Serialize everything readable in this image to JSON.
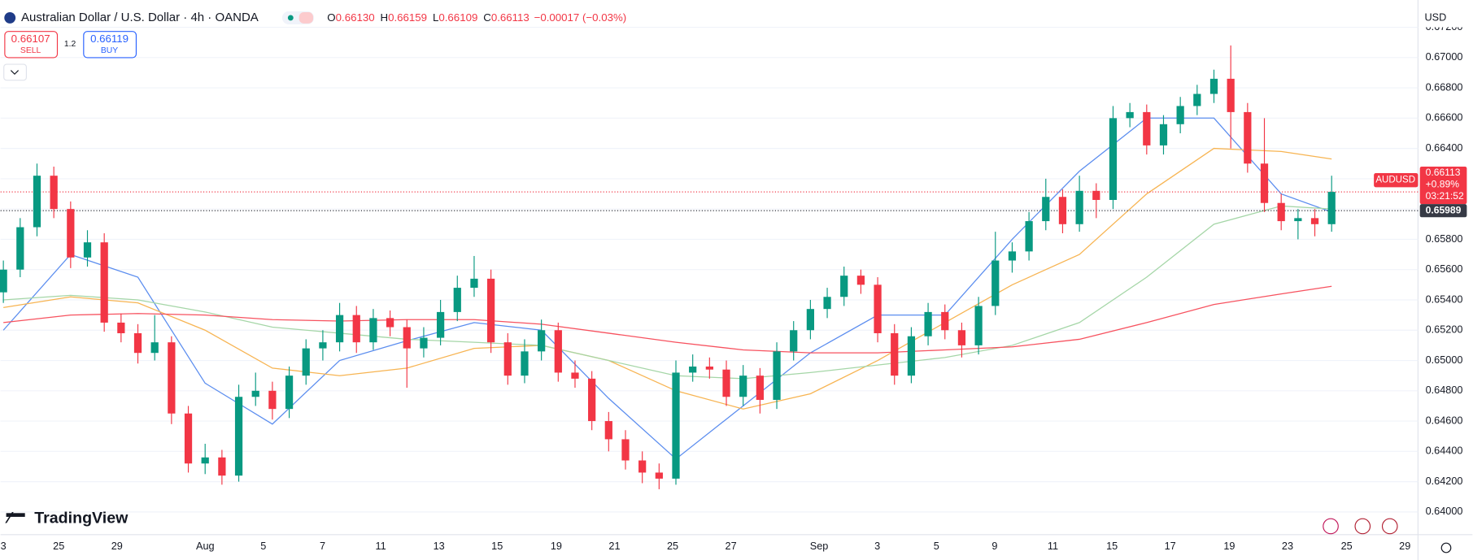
{
  "header": {
    "title": "Australian Dollar / U.S. Dollar · 4h · OANDA",
    "ohlc": [
      {
        "label": "O",
        "value": "0.66130"
      },
      {
        "label": "H",
        "value": "0.66159"
      },
      {
        "label": "L",
        "value": "0.66109"
      },
      {
        "label": "C",
        "value": "0.66113"
      }
    ],
    "change": "−0.00017 (−0.03%)"
  },
  "trade": {
    "sell_price": "0.66107",
    "sell_label": "SELL",
    "spread": "1.2",
    "buy_price": "0.66119",
    "buy_label": "BUY"
  },
  "currency": "USD",
  "logo": "TradingView",
  "chart_data": {
    "type": "candlestick",
    "up_color": "#089981",
    "down_color": "#f23645",
    "grid": true,
    "ylim": [
      0.6385,
      0.6738
    ],
    "yticks": [
      {
        "value": 0.64,
        "label": "0.64000"
      },
      {
        "value": 0.642,
        "label": "0.64200"
      },
      {
        "value": 0.644,
        "label": "0.64400"
      },
      {
        "value": 0.646,
        "label": "0.64600"
      },
      {
        "value": 0.648,
        "label": "0.64800"
      },
      {
        "value": 0.65,
        "label": "0.65000"
      },
      {
        "value": 0.652,
        "label": "0.65200"
      },
      {
        "value": 0.654,
        "label": "0.65400"
      },
      {
        "value": 0.656,
        "label": "0.65600"
      },
      {
        "value": 0.658,
        "label": "0.65800"
      },
      {
        "value": 0.66,
        "label": "0.66000"
      },
      {
        "value": 0.662,
        "label": "0.66200"
      },
      {
        "value": 0.664,
        "label": "0.66400"
      },
      {
        "value": 0.666,
        "label": "0.66600"
      },
      {
        "value": 0.668,
        "label": "0.66800"
      },
      {
        "value": 0.67,
        "label": "0.67000"
      },
      {
        "value": 0.672,
        "label": "0.67200"
      }
    ],
    "x_labels": [
      "3",
      "25",
      "29",
      "Aug",
      "5",
      "7",
      "11",
      "13",
      "15",
      "19",
      "21",
      "25",
      "27",
      "Sep",
      "3",
      "5",
      "9",
      "11",
      "15",
      "17",
      "19",
      "23",
      "25",
      "29"
    ],
    "candles": [
      [
        0.6545,
        0.6566,
        0.6538,
        0.656
      ],
      [
        0.656,
        0.6594,
        0.6555,
        0.6588
      ],
      [
        0.6588,
        0.663,
        0.6582,
        0.6622
      ],
      [
        0.6622,
        0.6628,
        0.6594,
        0.66
      ],
      [
        0.66,
        0.6605,
        0.6561,
        0.6568
      ],
      [
        0.6568,
        0.6586,
        0.6562,
        0.6578
      ],
      [
        0.6578,
        0.6584,
        0.6519,
        0.6525
      ],
      [
        0.6525,
        0.6531,
        0.6512,
        0.6518
      ],
      [
        0.6518,
        0.6524,
        0.6498,
        0.6505
      ],
      [
        0.6505,
        0.653,
        0.65,
        0.6512
      ],
      [
        0.6512,
        0.6516,
        0.6458,
        0.6465
      ],
      [
        0.6465,
        0.647,
        0.6426,
        0.6432
      ],
      [
        0.6432,
        0.6445,
        0.6425,
        0.6436
      ],
      [
        0.6436,
        0.6441,
        0.6418,
        0.6424
      ],
      [
        0.6424,
        0.6484,
        0.642,
        0.6476
      ],
      [
        0.6476,
        0.6492,
        0.647,
        0.648
      ],
      [
        0.648,
        0.6486,
        0.6461,
        0.6468
      ],
      [
        0.6468,
        0.6496,
        0.6462,
        0.649
      ],
      [
        0.649,
        0.6514,
        0.6484,
        0.6508
      ],
      [
        0.6508,
        0.652,
        0.65,
        0.6512
      ],
      [
        0.6512,
        0.6538,
        0.6506,
        0.653
      ],
      [
        0.653,
        0.6536,
        0.6505,
        0.6512
      ],
      [
        0.6512,
        0.6534,
        0.6507,
        0.6528
      ],
      [
        0.6528,
        0.6533,
        0.6516,
        0.6522
      ],
      [
        0.6522,
        0.6527,
        0.6482,
        0.6508
      ],
      [
        0.6508,
        0.6522,
        0.6502,
        0.6515
      ],
      [
        0.6515,
        0.654,
        0.651,
        0.6532
      ],
      [
        0.6532,
        0.6556,
        0.6526,
        0.6548
      ],
      [
        0.6548,
        0.6569,
        0.6542,
        0.6554
      ],
      [
        0.6554,
        0.656,
        0.6505,
        0.6512
      ],
      [
        0.6512,
        0.6518,
        0.6484,
        0.649
      ],
      [
        0.649,
        0.6514,
        0.6485,
        0.6506
      ],
      [
        0.6506,
        0.6527,
        0.65,
        0.652
      ],
      [
        0.652,
        0.6525,
        0.6486,
        0.6492
      ],
      [
        0.6492,
        0.65,
        0.6482,
        0.6488
      ],
      [
        0.6488,
        0.6493,
        0.6454,
        0.646
      ],
      [
        0.646,
        0.6466,
        0.644,
        0.6448
      ],
      [
        0.6448,
        0.6454,
        0.6428,
        0.6434
      ],
      [
        0.6434,
        0.644,
        0.6419,
        0.6426
      ],
      [
        0.6426,
        0.6432,
        0.6415,
        0.6422
      ],
      [
        0.6422,
        0.65,
        0.6418,
        0.6492
      ],
      [
        0.6492,
        0.6504,
        0.6486,
        0.6496
      ],
      [
        0.6496,
        0.6502,
        0.6488,
        0.6494
      ],
      [
        0.6494,
        0.65,
        0.647,
        0.6476
      ],
      [
        0.6476,
        0.6497,
        0.647,
        0.649
      ],
      [
        0.649,
        0.6495,
        0.6465,
        0.6474
      ],
      [
        0.6474,
        0.6512,
        0.6468,
        0.6506
      ],
      [
        0.6506,
        0.6526,
        0.65,
        0.652
      ],
      [
        0.652,
        0.654,
        0.6514,
        0.6534
      ],
      [
        0.6534,
        0.6548,
        0.6528,
        0.6542
      ],
      [
        0.6542,
        0.6562,
        0.6536,
        0.6556
      ],
      [
        0.6556,
        0.656,
        0.6544,
        0.655
      ],
      [
        0.655,
        0.6555,
        0.6512,
        0.6518
      ],
      [
        0.6518,
        0.6524,
        0.6484,
        0.649
      ],
      [
        0.649,
        0.6522,
        0.6485,
        0.6516
      ],
      [
        0.6516,
        0.6538,
        0.651,
        0.6532
      ],
      [
        0.6532,
        0.6537,
        0.6514,
        0.652
      ],
      [
        0.652,
        0.6525,
        0.6502,
        0.651
      ],
      [
        0.651,
        0.6542,
        0.6504,
        0.6536
      ],
      [
        0.6536,
        0.6585,
        0.653,
        0.6566
      ],
      [
        0.6566,
        0.6578,
        0.6558,
        0.6572
      ],
      [
        0.6572,
        0.6598,
        0.6566,
        0.6592
      ],
      [
        0.6592,
        0.662,
        0.6586,
        0.6608
      ],
      [
        0.6608,
        0.6613,
        0.6584,
        0.659
      ],
      [
        0.659,
        0.6622,
        0.6585,
        0.6612
      ],
      [
        0.6612,
        0.6617,
        0.6594,
        0.6606
      ],
      [
        0.6606,
        0.6668,
        0.66,
        0.666
      ],
      [
        0.666,
        0.667,
        0.6654,
        0.6664
      ],
      [
        0.6664,
        0.6669,
        0.6636,
        0.6642
      ],
      [
        0.6642,
        0.6662,
        0.6636,
        0.6656
      ],
      [
        0.6656,
        0.6674,
        0.665,
        0.6668
      ],
      [
        0.6668,
        0.6682,
        0.6662,
        0.6676
      ],
      [
        0.6676,
        0.6692,
        0.667,
        0.6686
      ],
      [
        0.6686,
        0.6708,
        0.664,
        0.6664
      ],
      [
        0.6664,
        0.667,
        0.6624,
        0.663
      ],
      [
        0.663,
        0.666,
        0.6598,
        0.6604
      ],
      [
        0.6604,
        0.661,
        0.6586,
        0.6592
      ],
      [
        0.6592,
        0.66,
        0.658,
        0.6594
      ],
      [
        0.6594,
        0.66,
        0.6582,
        0.659
      ],
      [
        0.659,
        0.6622,
        0.6585,
        0.66113
      ]
    ],
    "ma_x": [
      0,
      4,
      8,
      12,
      16,
      20,
      24,
      28,
      32,
      36,
      40,
      44,
      48,
      52,
      56,
      60,
      64,
      68,
      72,
      76,
      79
    ],
    "series": [
      {
        "color": "#5b8def",
        "values": [
          0.652,
          0.657,
          0.6555,
          0.6485,
          0.6458,
          0.65,
          0.6513,
          0.6525,
          0.652,
          0.6475,
          0.6435,
          0.647,
          0.6505,
          0.653,
          0.653,
          0.658,
          0.6625,
          0.666,
          0.666,
          0.661,
          0.6598
        ]
      },
      {
        "color": "#f7b452",
        "values": [
          0.6535,
          0.6542,
          0.6538,
          0.652,
          0.6495,
          0.649,
          0.6495,
          0.6508,
          0.651,
          0.65,
          0.648,
          0.6468,
          0.6478,
          0.65,
          0.6525,
          0.655,
          0.657,
          0.661,
          0.664,
          0.6638,
          0.6633
        ]
      },
      {
        "color": "#a5d6a7",
        "values": [
          0.654,
          0.6543,
          0.654,
          0.6532,
          0.6522,
          0.6518,
          0.6514,
          0.6512,
          0.651,
          0.65,
          0.649,
          0.6488,
          0.6492,
          0.6497,
          0.6502,
          0.651,
          0.6525,
          0.6555,
          0.659,
          0.6602,
          0.66
        ]
      },
      {
        "color": "#f7525f",
        "values": [
          0.6525,
          0.653,
          0.6531,
          0.653,
          0.6527,
          0.6526,
          0.6527,
          0.6527,
          0.6524,
          0.6518,
          0.6512,
          0.6507,
          0.6505,
          0.6505,
          0.6507,
          0.6509,
          0.6514,
          0.6525,
          0.6537,
          0.6544,
          0.6549
        ]
      }
    ],
    "last_price": 0.66113,
    "symbol": "AUDUSD",
    "change_pct": "+0.89%",
    "countdown": "03:21:52",
    "reference_price": 0.65989
  }
}
